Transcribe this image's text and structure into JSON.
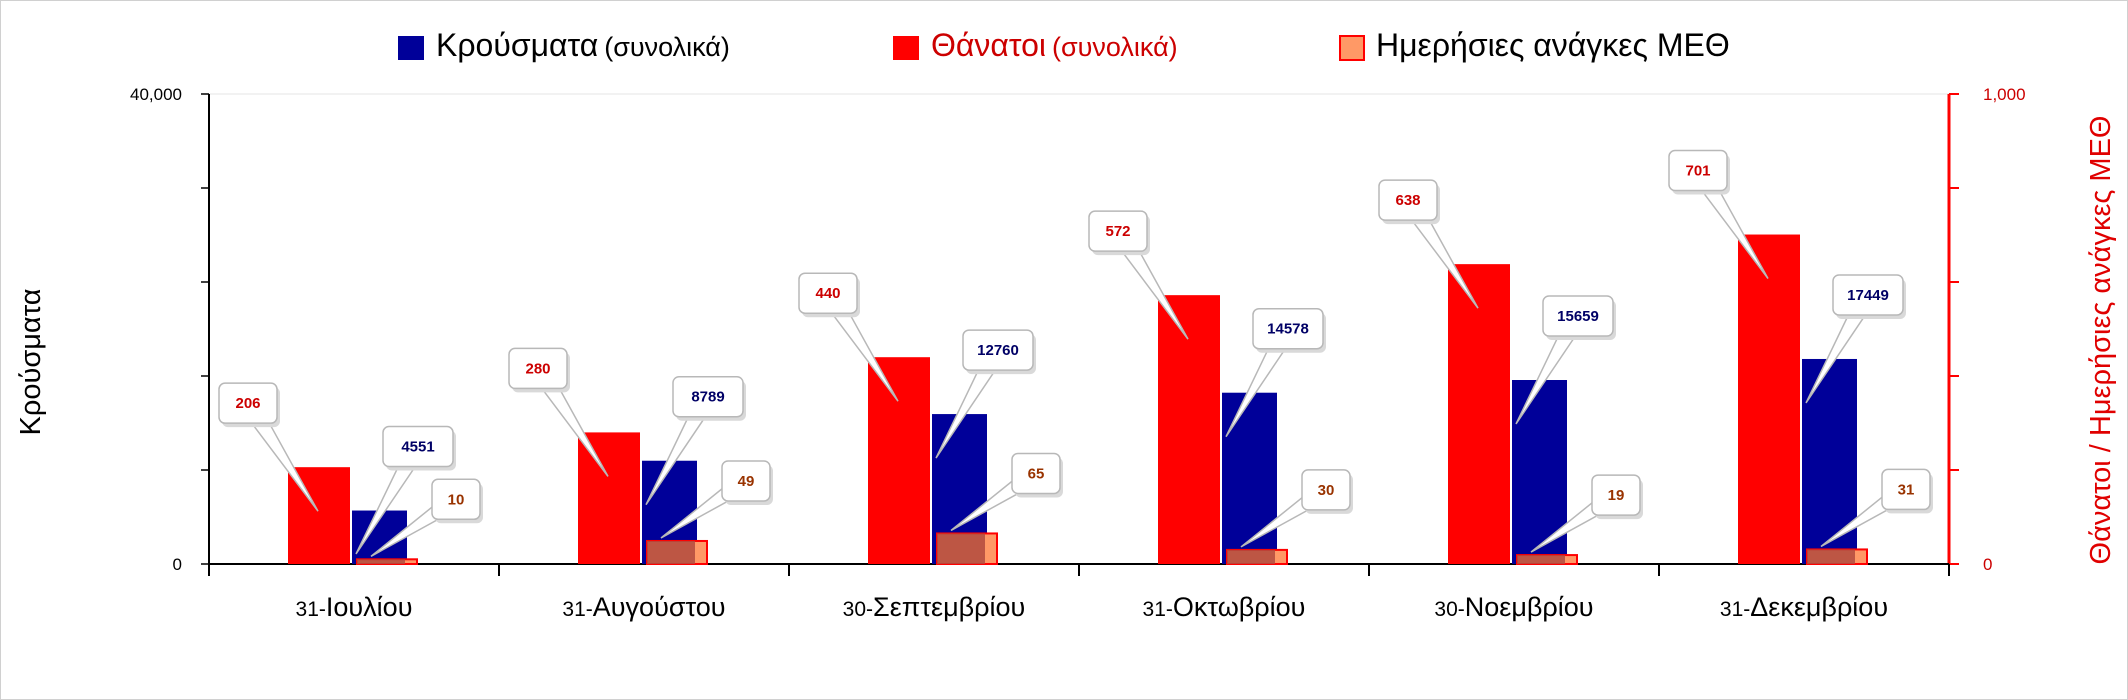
{
  "legend": {
    "cases": {
      "main": "Κρούσματα",
      "paren": "(συνολικά)"
    },
    "deaths": {
      "main": "Θάνατοι",
      "paren": "(συνολικά)"
    },
    "icu": {
      "main": "Ημερήσιες ανάγκες ΜΕΘ"
    }
  },
  "axes": {
    "left_title": "Κρούσματα",
    "right_title": "Θάνατοι / Ημερήσιες ανάγκες ΜΕΘ",
    "left_ticks": [
      "0",
      "40,000"
    ],
    "right_ticks": [
      "0",
      "1,000"
    ]
  },
  "categories_display": [
    {
      "num": "31-",
      "name": "Ιουλίου"
    },
    {
      "num": "31-",
      "name": "Αυγούστου"
    },
    {
      "num": "30-",
      "name": "Σεπτεμβρίου"
    },
    {
      "num": "31-",
      "name": "Οκτωβρίου"
    },
    {
      "num": "30-",
      "name": "Νοεμβρίου"
    },
    {
      "num": "31-",
      "name": "Δεκεμβρίου"
    }
  ],
  "chart_data": {
    "type": "bar",
    "categories": [
      "31-Ιουλίου",
      "31-Αυγούστου",
      "30-Σεπτεμβρίου",
      "31-Οκτωβρίου",
      "30-Νοεμβρίου",
      "31-Δεκεμβρίου"
    ],
    "series": [
      {
        "name": "Θάνατοι (συνολικά)",
        "axis": "right",
        "color": "#ff0000",
        "values": [
          206,
          280,
          440,
          572,
          638,
          701
        ]
      },
      {
        "name": "Κρούσματα (συνολικά)",
        "axis": "left",
        "color": "#000099",
        "values": [
          4551,
          8789,
          12760,
          14578,
          15659,
          17449
        ]
      },
      {
        "name": "Ημερήσιες ανάγκες ΜΕΘ",
        "axis": "right",
        "color": "#ff9966",
        "values": [
          10,
          49,
          65,
          30,
          19,
          31
        ]
      }
    ],
    "ylim_left": [
      0,
      40000
    ],
    "ylim_right": [
      0,
      1000
    ],
    "legend_position": "top-center",
    "grid": false
  }
}
